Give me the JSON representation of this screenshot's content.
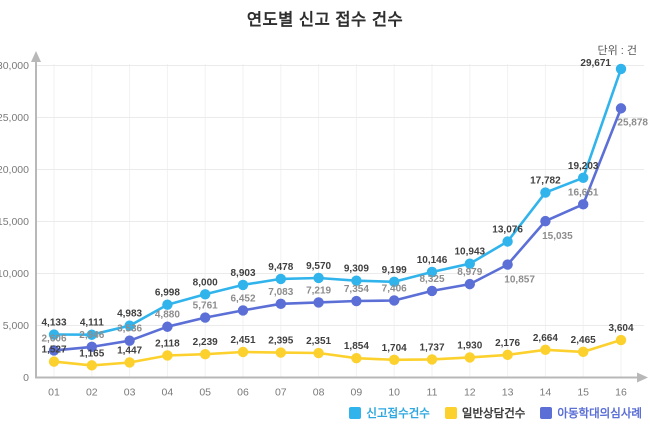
{
  "chart_data": {
    "type": "line",
    "title": "연도별 신고 접수 건수",
    "unit_label": "단위 : 건",
    "categories": [
      "01",
      "02",
      "03",
      "04",
      "05",
      "06",
      "07",
      "08",
      "09",
      "10",
      "11",
      "12",
      "13",
      "14",
      "15",
      "16"
    ],
    "series": [
      {
        "name": "신고접수건수",
        "color": "#31b4ec",
        "label_color": "#404040",
        "legend_text_color": "#2fa8e0",
        "values": [
          4133,
          4111,
          4983,
          6998,
          8000,
          8903,
          9478,
          9570,
          9309,
          9199,
          10146,
          10943,
          13076,
          17782,
          19203,
          29671
        ],
        "label_overrides": {
          "15": "left"
        }
      },
      {
        "name": "일반상담건수",
        "color": "#fcd12e",
        "label_color": "#404040",
        "legend_text_color": "#3c3c3c",
        "values": [
          1527,
          1165,
          1447,
          2118,
          2239,
          2451,
          2395,
          2351,
          1854,
          1704,
          1737,
          1930,
          2176,
          2664,
          2465,
          3604
        ],
        "label_overrides": {}
      },
      {
        "name": "아동학대의심사례",
        "color": "#5b6fd6",
        "label_color": "#8d8d8d",
        "legend_text_color": "#5b6fd6",
        "values": [
          2606,
          2946,
          3536,
          4880,
          5761,
          6452,
          7083,
          7219,
          7354,
          7406,
          8325,
          8979,
          10857,
          15035,
          16651,
          25878
        ],
        "label_overrides": {
          "12": "below",
          "13": "below",
          "15": "below-right"
        }
      }
    ],
    "ylim": [
      0,
      30000
    ],
    "ytick_step": 5000,
    "ytick_labels": [
      "0",
      "5,000",
      "10,000",
      "15,000",
      "20,000",
      "25,000",
      "30,000"
    ],
    "grid": true,
    "legend_position": "bottom-right",
    "axis_color": "#b8b8b8",
    "gridline_color": "#ebebeb",
    "vgridline_color": "#f2f2f2",
    "tick_text_color": "#7a7a7a"
  }
}
